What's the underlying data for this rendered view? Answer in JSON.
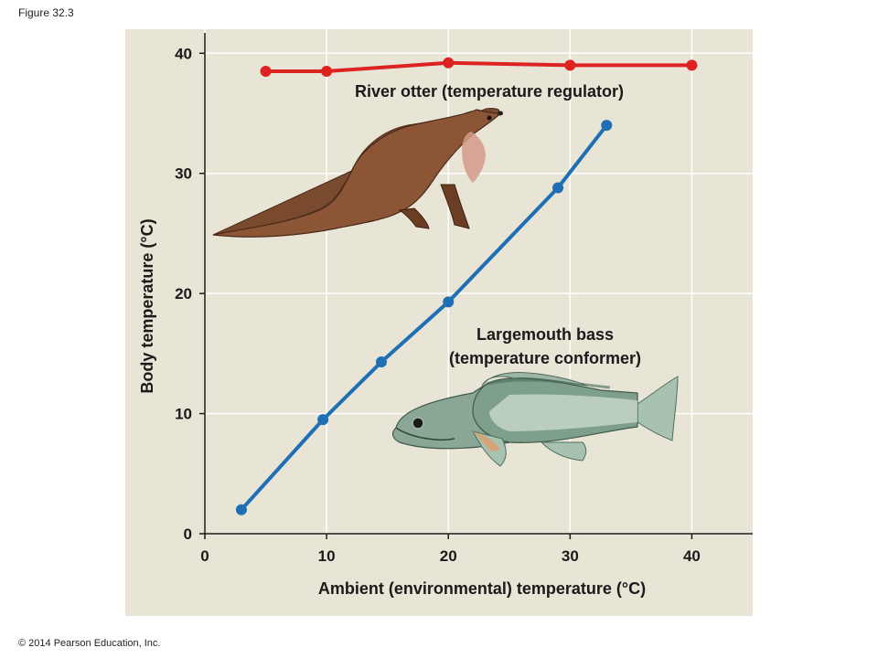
{
  "figure_label": "Figure 32.3",
  "copyright": "© 2014 Pearson Education, Inc.",
  "colors": {
    "otter_series": "#dd2222",
    "bass_series": "#1f6fb4",
    "panel": "#e8e4d6",
    "grid": "#ffffff"
  },
  "icons": {
    "otter": "river-otter-illustration",
    "bass": "largemouth-bass-illustration"
  },
  "chart_data": {
    "type": "line",
    "title": "",
    "xlabel": "Ambient (environmental) temperature (°C)",
    "ylabel": "Body temperature (°C)",
    "xlim": [
      0,
      45
    ],
    "ylim": [
      0,
      42
    ],
    "xticks": [
      0,
      10,
      20,
      30,
      40
    ],
    "yticks": [
      0,
      10,
      20,
      30,
      40
    ],
    "xtick_labels": [
      "0",
      "10",
      "20",
      "30",
      "40"
    ],
    "ytick_labels": [
      "0",
      "10",
      "20",
      "30",
      "40"
    ],
    "grid": true,
    "legend": "none",
    "series": [
      {
        "label_line1": "River otter (temperature regulator)",
        "x": [
          5,
          10,
          20,
          30,
          40
        ],
        "y": [
          38.5,
          38.5,
          39.2,
          39.0,
          39.0
        ]
      },
      {
        "label_line1": "Largemouth bass",
        "label_line2": "(temperature conformer)",
        "x": [
          3,
          9.7,
          14.5,
          20,
          29,
          33
        ],
        "y": [
          2,
          9.5,
          14.3,
          19.3,
          28.8,
          34
        ]
      }
    ]
  }
}
